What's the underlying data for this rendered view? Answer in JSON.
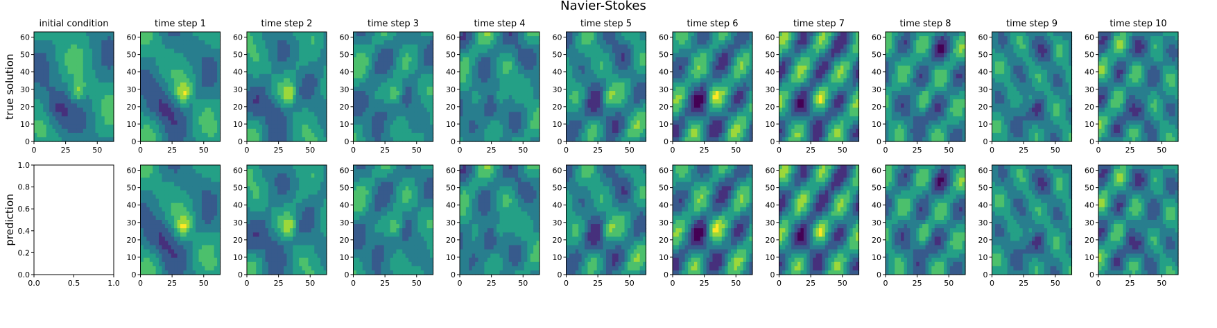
{
  "chart_data": {
    "type": "heatmap",
    "title": "Navier-Stokes",
    "colormap": "viridis",
    "panel_titles": [
      "initial condition",
      "time step 1",
      "time step 2",
      "time step 3",
      "time step 4",
      "time step 5",
      "time step 6",
      "time step 7",
      "time step 8",
      "time step 9",
      "time step 10"
    ],
    "row_labels": [
      "true solution",
      "prediction"
    ],
    "field_axes": {
      "xlim": [
        0,
        63
      ],
      "ylim": [
        0,
        63
      ],
      "xticks": [
        "0",
        "25",
        "50"
      ],
      "yticks": [
        "0",
        "10",
        "20",
        "30",
        "40",
        "50",
        "60"
      ]
    },
    "empty_axes": {
      "xlim": [
        0,
        1
      ],
      "ylim": [
        0,
        1
      ],
      "xticks": [
        "0.0",
        "0.5",
        "1.0"
      ],
      "yticks": [
        "0.0",
        "0.2",
        "0.4",
        "0.6",
        "0.8",
        "1.0"
      ]
    },
    "panels": [
      {
        "row": 0,
        "col": 0,
        "step": 0
      },
      {
        "row": 0,
        "col": 1,
        "step": 1
      },
      {
        "row": 0,
        "col": 2,
        "step": 2
      },
      {
        "row": 0,
        "col": 3,
        "step": 3
      },
      {
        "row": 0,
        "col": 4,
        "step": 4
      },
      {
        "row": 0,
        "col": 5,
        "step": 5
      },
      {
        "row": 0,
        "col": 6,
        "step": 6
      },
      {
        "row": 0,
        "col": 7,
        "step": 7
      },
      {
        "row": 0,
        "col": 8,
        "step": 8
      },
      {
        "row": 0,
        "col": 9,
        "step": 9
      },
      {
        "row": 0,
        "col": 10,
        "step": 10
      },
      {
        "row": 1,
        "col": 0,
        "empty": true
      },
      {
        "row": 1,
        "col": 1,
        "step": 1
      },
      {
        "row": 1,
        "col": 2,
        "step": 2
      },
      {
        "row": 1,
        "col": 3,
        "step": 3
      },
      {
        "row": 1,
        "col": 4,
        "step": 4
      },
      {
        "row": 1,
        "col": 5,
        "step": 5
      },
      {
        "row": 1,
        "col": 6,
        "step": 6
      },
      {
        "row": 1,
        "col": 7,
        "step": 7
      },
      {
        "row": 1,
        "col": 8,
        "step": 8
      },
      {
        "row": 1,
        "col": 9,
        "step": 9
      },
      {
        "row": 1,
        "col": 10,
        "step": 10
      }
    ]
  }
}
